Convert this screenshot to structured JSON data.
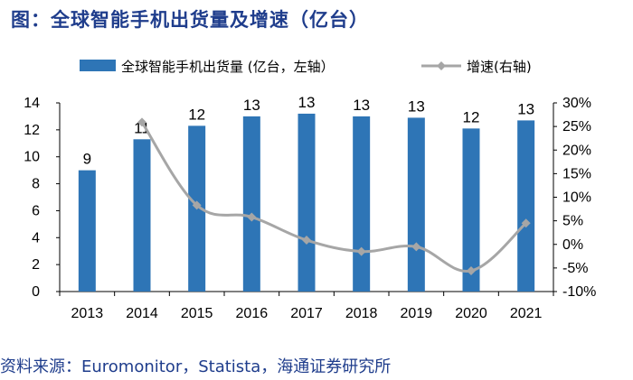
{
  "title": "图：全球智能手机出货量及增速（亿台）",
  "source": "资料来源：Euromonitor，Statista，海通证券研究所",
  "colors": {
    "bar": "#2e75b6",
    "line": "#a6a6a6",
    "title": "#1f3d8c"
  },
  "chart_data": {
    "type": "bar",
    "categories": [
      "2013",
      "2014",
      "2015",
      "2016",
      "2017",
      "2018",
      "2019",
      "2020",
      "2021"
    ],
    "series": [
      {
        "name": "全球智能手机出货量 (亿台，左轴）",
        "type": "bar",
        "axis": "left",
        "values": [
          9.0,
          11.3,
          12.3,
          13.0,
          13.2,
          13.0,
          12.9,
          12.1,
          12.7
        ],
        "labels": [
          "9",
          "11",
          "12",
          "13",
          "13",
          "13",
          "13",
          "12",
          "13"
        ]
      },
      {
        "name": "增速(右轴)",
        "type": "line",
        "axis": "right",
        "values": [
          null,
          25.9,
          8.3,
          5.8,
          0.9,
          -1.5,
          -0.5,
          -5.6,
          4.5
        ]
      }
    ],
    "y_left": {
      "ylim": [
        0,
        14
      ],
      "ticks": [
        "0",
        "2",
        "4",
        "6",
        "8",
        "10",
        "12",
        "14"
      ]
    },
    "y_right": {
      "ylim": [
        -10,
        30
      ],
      "ticks": [
        "-10%",
        "-5%",
        "0%",
        "5%",
        "10%",
        "15%",
        "20%",
        "25%",
        "30%"
      ]
    },
    "legend": "top-center",
    "grid": false
  }
}
